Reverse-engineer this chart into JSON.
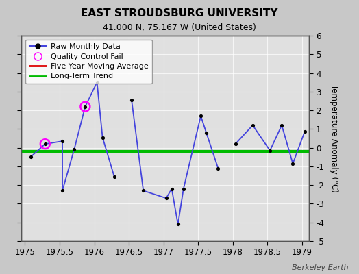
{
  "title": "EAST STROUDSBURG UNIVERSITY",
  "subtitle": "41.000 N, 75.167 W (United States)",
  "watermark": "Berkeley Earth",
  "xlim": [
    1974.95,
    1979.1
  ],
  "ylim": [
    -5,
    6
  ],
  "yticks": [
    -5,
    -4,
    -3,
    -2,
    -1,
    0,
    1,
    2,
    3,
    4,
    5,
    6
  ],
  "xticks": [
    1975,
    1975.5,
    1976,
    1976.5,
    1977,
    1977.5,
    1978,
    1978.5,
    1979
  ],
  "xticklabels": [
    "1975",
    "1975.5",
    "1976",
    "1976.5",
    "1977",
    "1977.5",
    "1978",
    "1978.5",
    "1979"
  ],
  "ylabel": "Temperature Anomaly (°C)",
  "background_color": "#c8c8c8",
  "plot_bg_color": "#e0e0e0",
  "raw_data_x": [
    1975.08,
    1975.29,
    1975.54,
    1975.54,
    1975.71,
    1975.87,
    1976.04,
    1976.12,
    1976.29,
    1976.54,
    1976.71,
    1977.04,
    1977.12,
    1977.21,
    1977.29,
    1977.54,
    1977.62,
    1977.79,
    1978.04,
    1978.29,
    1978.54,
    1978.71,
    1978.87,
    1979.04
  ],
  "raw_data_y": [
    -0.5,
    0.2,
    0.35,
    -2.3,
    -0.1,
    2.2,
    3.5,
    0.55,
    -1.55,
    2.55,
    -2.3,
    -2.7,
    -2.2,
    -4.1,
    -2.2,
    1.7,
    0.8,
    -1.1,
    0.2,
    1.2,
    -0.15,
    1.2,
    -0.85,
    0.85
  ],
  "qc_fail_indices": [
    1,
    5
  ],
  "connected_segments": [
    [
      0,
      1,
      2,
      3,
      4,
      5,
      6,
      7,
      8
    ],
    [
      9,
      10,
      11,
      12,
      13,
      14,
      15,
      16,
      17
    ],
    [
      18,
      19,
      20,
      21,
      22,
      23
    ]
  ],
  "isolated_dots": [],
  "long_term_trend_y": -0.2,
  "line_color": "#4444dd",
  "dot_color": "#000000",
  "qc_color": "#ff00ff",
  "trend_color": "#00bb00",
  "moving_avg_color": "#dd0000",
  "grid_color": "#ffffff",
  "grid_alpha": 0.7
}
